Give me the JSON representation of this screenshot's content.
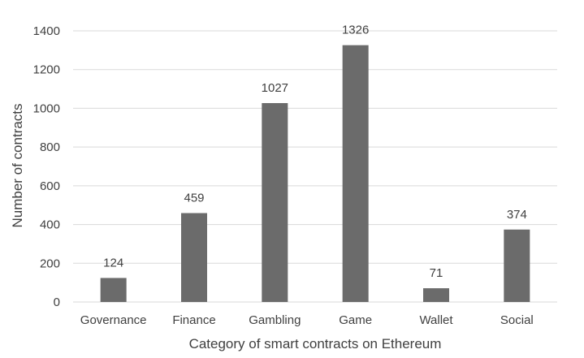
{
  "chart_data": {
    "type": "bar",
    "title": "",
    "xlabel": "Category of smart contracts on Ethereum",
    "ylabel": "Number of contracts",
    "categories": [
      "Governance",
      "Finance",
      "Gambling",
      "Game",
      "Wallet",
      "Social"
    ],
    "values": [
      124,
      459,
      1027,
      1326,
      71,
      374
    ],
    "data_labels": [
      "124",
      "459",
      "1027",
      "1326",
      "71",
      "374"
    ],
    "ylim": [
      0,
      1400
    ],
    "yticks": [
      0,
      200,
      400,
      600,
      800,
      1000,
      1200,
      1400
    ],
    "grid": true,
    "legend": "none",
    "colors": {
      "bar": "#6b6b6b",
      "grid": "#d9d9d9",
      "text": "#404040"
    }
  }
}
